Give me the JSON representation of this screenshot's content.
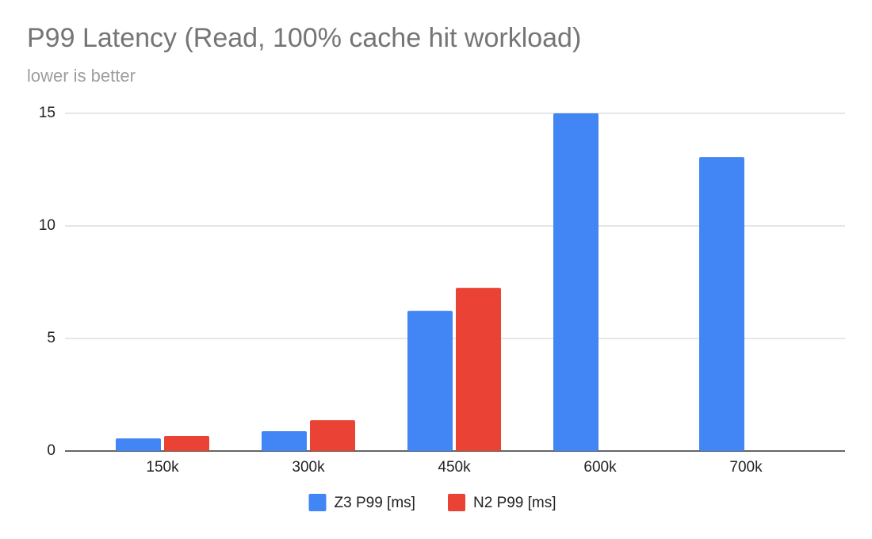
{
  "chart_data": {
    "type": "bar",
    "title": "P99 Latency (Read, 100% cache hit workload)",
    "subtitle": "lower is better",
    "categories": [
      "150k",
      "300k",
      "450k",
      "600k",
      "700k"
    ],
    "series": [
      {
        "name": "Z3 P99 [ms]",
        "color": "#4285f4",
        "values": [
          0.56,
          0.88,
          6.23,
          15.0,
          13.06
        ]
      },
      {
        "name": "N2 P99 [ms]",
        "color": "#ea4335",
        "values": [
          0.67,
          1.37,
          7.25,
          null,
          null
        ]
      }
    ],
    "ylim": [
      0,
      15
    ],
    "yticks": [
      0,
      5,
      10,
      15
    ],
    "grid": true,
    "legend": "bottom"
  }
}
